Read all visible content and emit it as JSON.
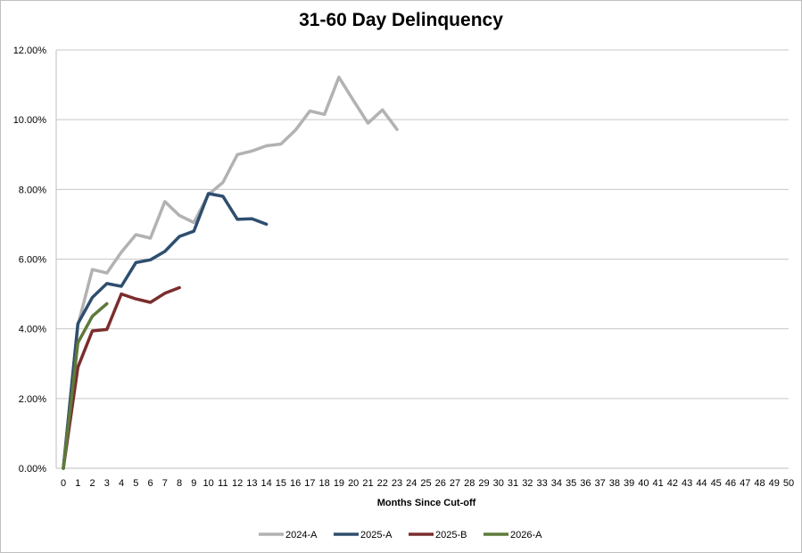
{
  "chart_data": {
    "type": "line",
    "title": "31-60 Day Delinquency",
    "xlabel": "Months Since Cut-off",
    "ylabel": "",
    "xlim": [
      0,
      50
    ],
    "ylim": [
      0,
      0.12
    ],
    "yticks": [
      "0.00%",
      "2.00%",
      "4.00%",
      "6.00%",
      "8.00%",
      "10.00%",
      "12.00%"
    ],
    "xticks": [
      "0",
      "1",
      "2",
      "3",
      "4",
      "5",
      "6",
      "7",
      "8",
      "9",
      "10",
      "11",
      "12",
      "13",
      "14",
      "15",
      "16",
      "17",
      "18",
      "19",
      "20",
      "21",
      "22",
      "23",
      "24",
      "25",
      "26",
      "27",
      "28",
      "29",
      "30",
      "31",
      "32",
      "33",
      "34",
      "35",
      "36",
      "37",
      "38",
      "39",
      "40",
      "41",
      "42",
      "43",
      "44",
      "45",
      "46",
      "47",
      "48",
      "49",
      "50"
    ],
    "grid": true,
    "legend": "bottom",
    "series": [
      {
        "name": "2024-A",
        "color": "#b2b2b2",
        "x": [
          0,
          1,
          2,
          3,
          4,
          5,
          6,
          7,
          8,
          9,
          10,
          11,
          12,
          13,
          14,
          15,
          16,
          17,
          18,
          19,
          20,
          21,
          22,
          23
        ],
        "values": [
          0.0,
          0.041,
          0.057,
          0.056,
          0.062,
          0.067,
          0.066,
          0.0765,
          0.0725,
          0.0705,
          0.0785,
          0.082,
          0.09,
          0.091,
          0.0925,
          0.093,
          0.097,
          0.1025,
          0.1015,
          0.1122,
          0.1055,
          0.099,
          0.1028,
          0.0972
        ]
      },
      {
        "name": "2025-A",
        "color": "#2e4e6e",
        "x": [
          0,
          1,
          2,
          3,
          4,
          5,
          6,
          7,
          8,
          9,
          10,
          11,
          12,
          13,
          14
        ],
        "values": [
          0.0,
          0.0415,
          0.049,
          0.053,
          0.0522,
          0.059,
          0.0598,
          0.0622,
          0.0665,
          0.068,
          0.0788,
          0.078,
          0.0714,
          0.0716,
          0.07
        ]
      },
      {
        "name": "2025-B",
        "color": "#7b2d2d",
        "x": [
          0,
          1,
          2,
          3,
          4,
          5,
          6,
          7,
          8
        ],
        "values": [
          0.0,
          0.029,
          0.0394,
          0.0398,
          0.05,
          0.0486,
          0.0476,
          0.0502,
          0.0518
        ]
      },
      {
        "name": "2026-A",
        "color": "#5e7a3a",
        "x": [
          0,
          1,
          2,
          3
        ],
        "values": [
          0.0,
          0.036,
          0.0436,
          0.0472
        ]
      }
    ]
  }
}
